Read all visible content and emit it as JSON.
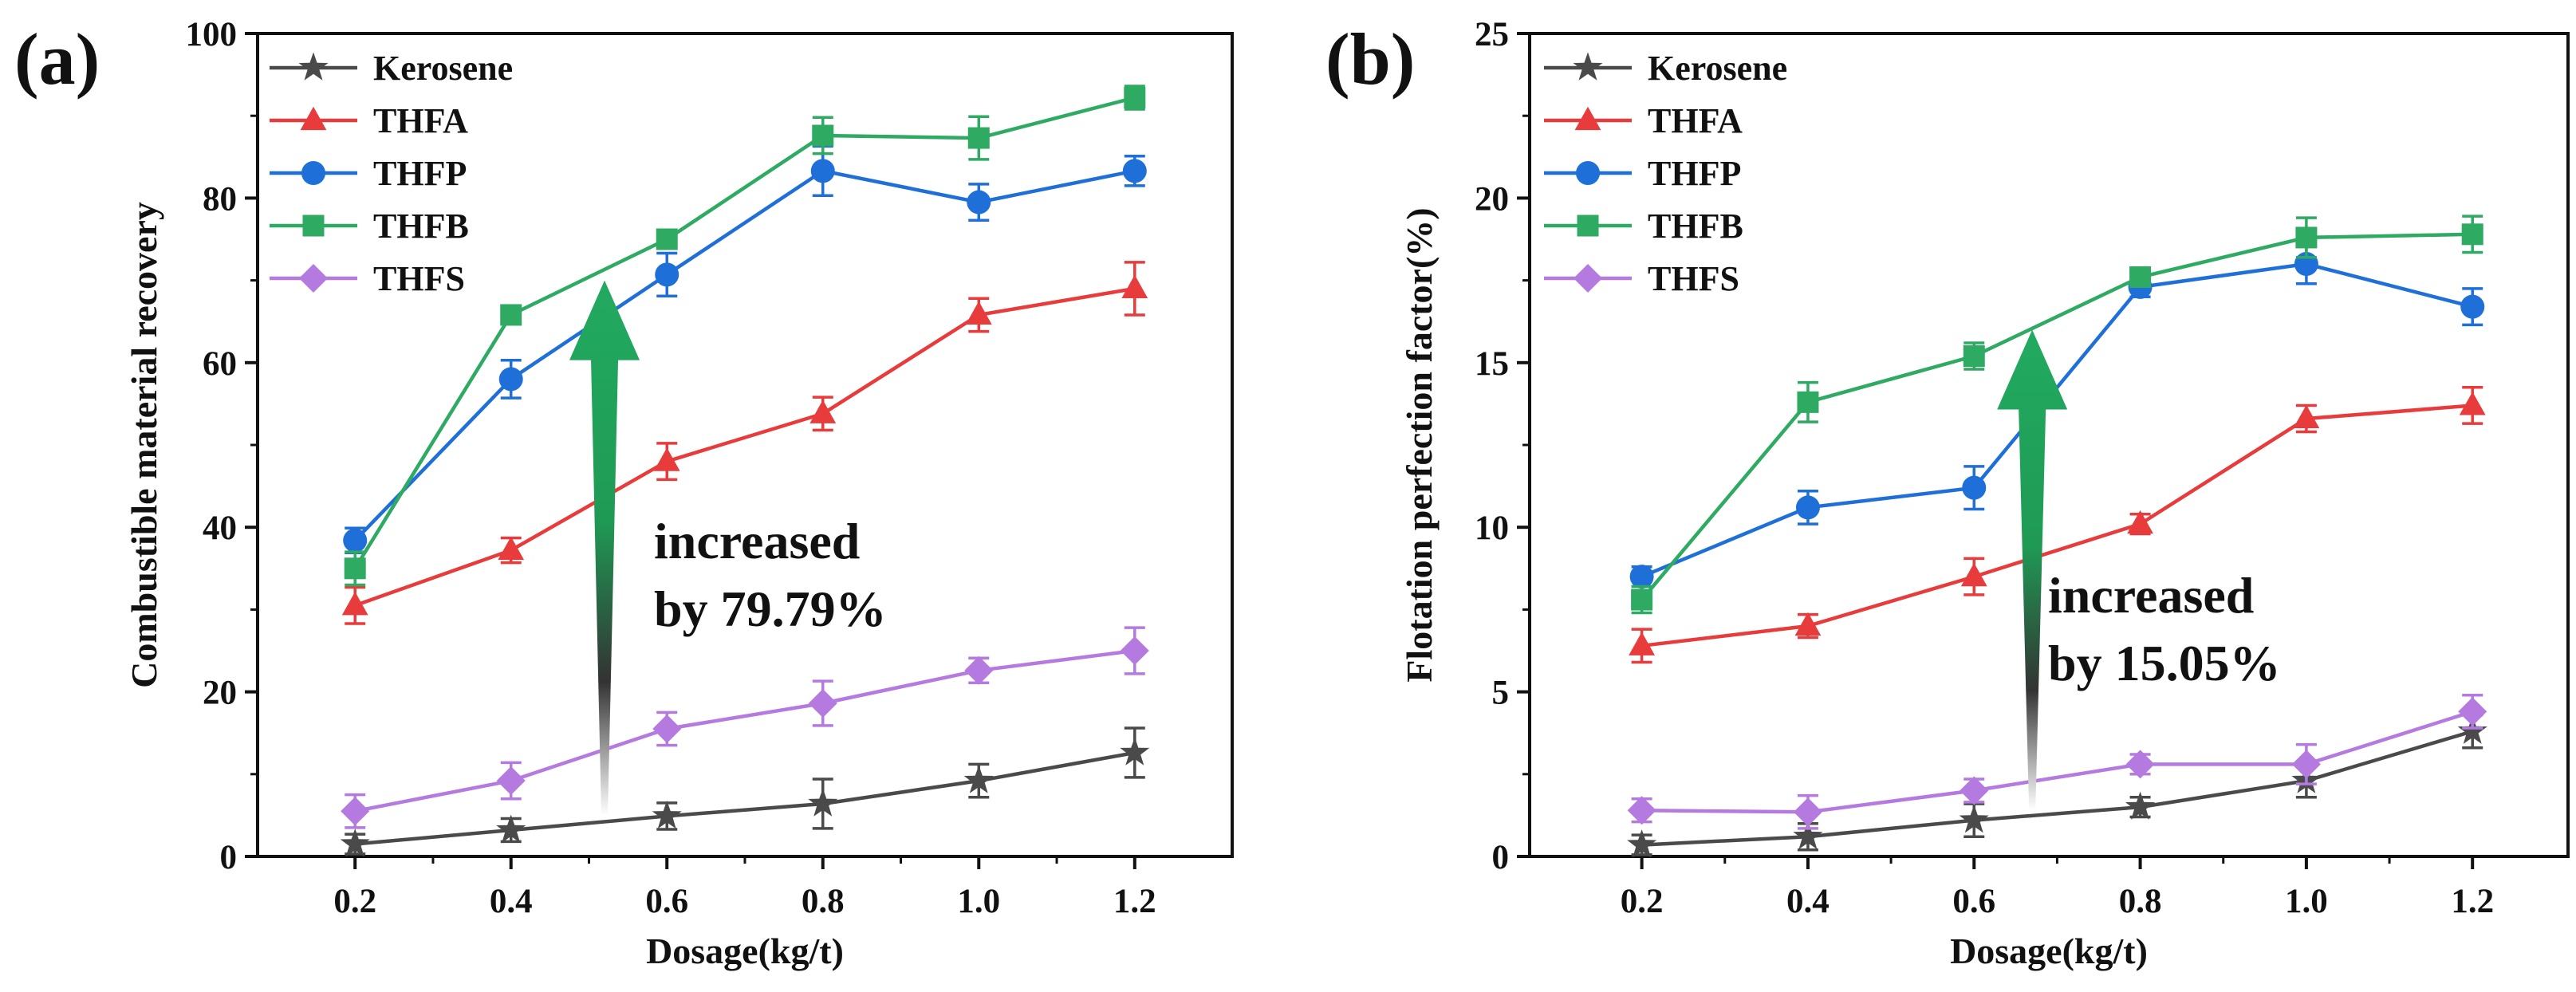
{
  "chart_data": [
    {
      "type": "line",
      "panel": "(a)",
      "title": "",
      "xlabel": "Dosage(kg/t)",
      "ylabel": "Combustible material recovery",
      "categories": [
        "0.2",
        "0.4",
        "0.6",
        "0.8",
        "1.0",
        "1.2"
      ],
      "x": [
        0.2,
        0.4,
        0.6,
        0.8,
        1.0,
        1.2
      ],
      "xlim": [
        0.075,
        1.325
      ],
      "ylim": [
        0,
        100
      ],
      "yticks": [
        "0",
        "20",
        "40",
        "60",
        "80",
        "100"
      ],
      "legend_position": "top-left",
      "series": [
        {
          "name": "Kerosene",
          "marker": "star",
          "color": "#4a4a4a",
          "values": [
            1.5,
            3.2,
            4.9,
            6.4,
            9.2,
            12.6
          ],
          "errors": [
            1.2,
            1.4,
            1.6,
            3.0,
            2.0,
            3.0
          ]
        },
        {
          "name": "THFA",
          "marker": "triangle",
          "color": "#e83b3b",
          "values": [
            30.5,
            37.2,
            48.0,
            53.8,
            65.8,
            69.0
          ],
          "errors": [
            2.2,
            1.5,
            2.2,
            2.0,
            2.0,
            3.2
          ]
        },
        {
          "name": "THFP",
          "marker": "circle",
          "color": "#1f6fd9",
          "values": [
            38.4,
            58.0,
            70.7,
            83.3,
            79.5,
            83.3
          ],
          "errors": [
            1.5,
            2.3,
            2.6,
            3.0,
            2.2,
            1.8
          ]
        },
        {
          "name": "THFB",
          "marker": "square",
          "color": "#2eaa62",
          "values": [
            35.0,
            65.8,
            75.0,
            87.6,
            87.3,
            92.2
          ],
          "errors": [
            2.0,
            0.7,
            1.0,
            2.2,
            2.6,
            1.4
          ]
        },
        {
          "name": "THFS",
          "marker": "diamond",
          "color": "#b57ae0",
          "values": [
            5.5,
            9.2,
            15.5,
            18.6,
            22.6,
            25.0
          ],
          "errors": [
            2.0,
            2.2,
            2.0,
            2.7,
            1.5,
            2.8
          ]
        }
      ],
      "annotation": {
        "line1": "increased",
        "line2": "by 79.79%",
        "arrow_x": 0.52,
        "arrow_from": 5,
        "arrow_to": 70
      }
    },
    {
      "type": "line",
      "panel": "(b)",
      "title": "",
      "xlabel": "Dosage(kg/t)",
      "ylabel": "Flotation perfection factor(%)",
      "categories": [
        "0.2",
        "0.4",
        "0.6",
        "0.8",
        "1.0",
        "1.2"
      ],
      "x": [
        0.2,
        0.4,
        0.6,
        0.8,
        1.0,
        1.2
      ],
      "xlim": [
        0.065,
        1.315
      ],
      "ylim": [
        0,
        25
      ],
      "yticks": [
        "0",
        "5",
        "10",
        "15",
        "20",
        "25"
      ],
      "legend_position": "top-left",
      "series": [
        {
          "name": "Kerosene",
          "marker": "star",
          "color": "#4a4a4a",
          "values": [
            0.35,
            0.6,
            1.1,
            1.5,
            2.3,
            3.8
          ],
          "errors": [
            0.3,
            0.4,
            0.5,
            0.3,
            0.5,
            0.5
          ]
        },
        {
          "name": "THFA",
          "marker": "triangle",
          "color": "#e83b3b",
          "values": [
            6.4,
            7.0,
            8.5,
            10.1,
            13.3,
            13.7
          ],
          "errors": [
            0.5,
            0.35,
            0.55,
            0.3,
            0.4,
            0.55
          ]
        },
        {
          "name": "THFP",
          "marker": "circle",
          "color": "#1f6fd9",
          "values": [
            8.5,
            10.6,
            11.2,
            17.3,
            18.0,
            16.7
          ],
          "errors": [
            0.3,
            0.5,
            0.65,
            0.3,
            0.6,
            0.55
          ]
        },
        {
          "name": "THFB",
          "marker": "square",
          "color": "#2eaa62",
          "values": [
            7.8,
            13.8,
            15.2,
            17.6,
            18.8,
            18.9
          ],
          "errors": [
            0.4,
            0.6,
            0.4,
            0.25,
            0.6,
            0.55
          ]
        },
        {
          "name": "THFS",
          "marker": "diamond",
          "color": "#b57ae0",
          "values": [
            1.4,
            1.35,
            2.0,
            2.8,
            2.8,
            4.4
          ],
          "errors": [
            0.35,
            0.5,
            0.35,
            0.3,
            0.6,
            0.5
          ]
        }
      ],
      "annotation": {
        "line1": "increased",
        "line2": "by 15.05%",
        "arrow_x": 0.67,
        "arrow_from": 1.4,
        "arrow_to": 16
      }
    }
  ]
}
